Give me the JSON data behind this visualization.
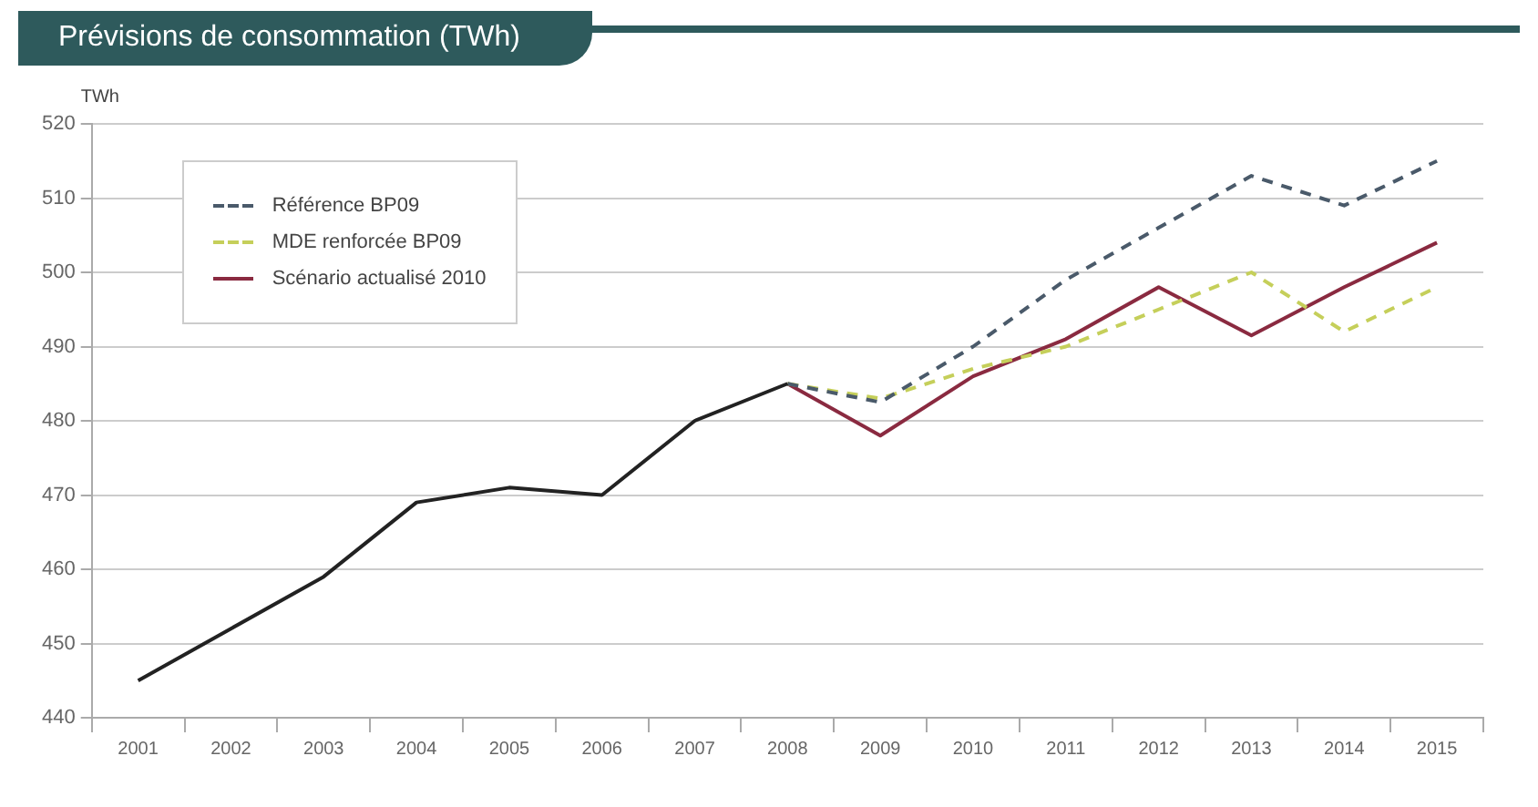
{
  "chart_data": {
    "type": "line",
    "title": "Prévisions de consommation (TWh)",
    "ylabel": "TWh",
    "categories": [
      "2001",
      "2002",
      "2003",
      "2004",
      "2005",
      "2006",
      "2007",
      "2008",
      "2009",
      "2010",
      "2011",
      "2012",
      "2013",
      "2014",
      "2015"
    ],
    "series": [
      {
        "color": "#222222",
        "values": [
          445,
          452,
          459,
          469,
          471,
          470,
          480,
          485,
          null,
          null,
          null,
          null,
          null,
          null,
          null
        ]
      },
      {
        "name": "Référence BP09",
        "color": "#4a5a6a",
        "line_style": "dashed",
        "values": [
          null,
          null,
          null,
          null,
          null,
          null,
          null,
          485,
          482.5,
          490,
          499,
          506,
          513,
          509,
          515
        ]
      },
      {
        "name": "MDE renforcée BP09",
        "color": "#c5cf5a",
        "line_style": "dashed",
        "values": [
          null,
          null,
          null,
          null,
          null,
          null,
          null,
          485,
          483,
          487,
          490,
          495,
          500,
          492,
          498
        ]
      },
      {
        "name": "Scénario actualisé 2010",
        "color": "#8a2a40",
        "line_style": "solid",
        "values": [
          null,
          null,
          null,
          null,
          null,
          null,
          null,
          485,
          478,
          486,
          491,
          498,
          491.5,
          498,
          504
        ]
      }
    ],
    "ylim": [
      440,
      520
    ],
    "yticks": [
      440,
      450,
      460,
      470,
      480,
      490,
      500,
      510,
      520
    ],
    "grid": "y",
    "legend": "top left",
    "marker": "none"
  }
}
